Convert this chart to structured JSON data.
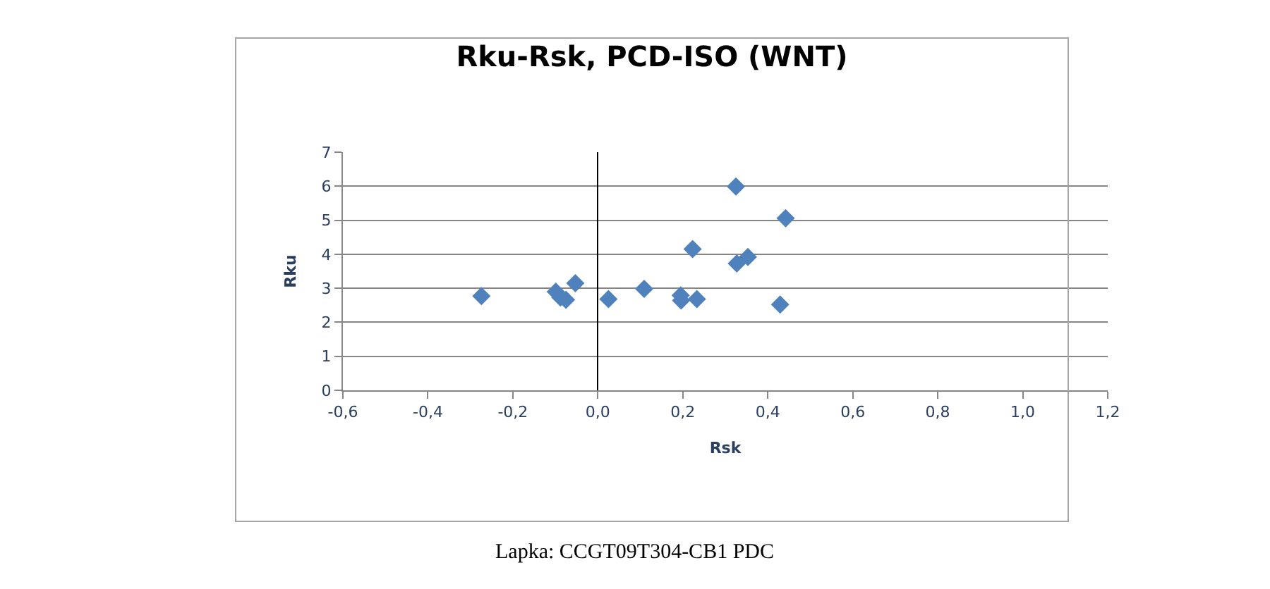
{
  "chart_data": {
    "type": "scatter",
    "title": "Rku-Rsk, PCD-ISO (WNT)",
    "xlabel": "Rsk",
    "ylabel": "Rku",
    "annotations": [
      "Lapka: CCGT09T304-CB1 PDC"
    ],
    "series": [
      {
        "color": "#4f81bd",
        "x": [
          -0.274,
          -0.099,
          -0.088,
          -0.075,
          -0.053,
          0.025,
          0.109,
          0.195,
          0.196,
          0.233,
          0.223,
          0.325,
          0.327,
          0.353,
          0.442,
          0.429
        ],
        "values": [
          2.77,
          2.9,
          2.73,
          2.66,
          3.15,
          2.68,
          2.98,
          2.79,
          2.64,
          2.68,
          4.15,
          5.99,
          3.73,
          3.92,
          5.06,
          2.52
        ]
      }
    ],
    "xlim": [
      -0.6,
      1.2
    ],
    "xticks": [
      {
        "value": -0.6,
        "label": "-0,6"
      },
      {
        "value": -0.4,
        "label": "-0,4"
      },
      {
        "value": -0.2,
        "label": "-0,2"
      },
      {
        "value": 0,
        "label": "0,0"
      },
      {
        "value": 0.2,
        "label": "0,2"
      },
      {
        "value": 0.4,
        "label": "0,4"
      },
      {
        "value": 0.6,
        "label": "0,6"
      },
      {
        "value": 0.8,
        "label": "0,8"
      },
      {
        "value": 1.0,
        "label": "1,0"
      },
      {
        "value": 1.2,
        "label": "1,2"
      }
    ],
    "ylim": [
      0,
      7
    ],
    "yticks": [
      0,
      1,
      2,
      3,
      4,
      5,
      6,
      7
    ],
    "grid": "y",
    "marker": "diamond"
  }
}
